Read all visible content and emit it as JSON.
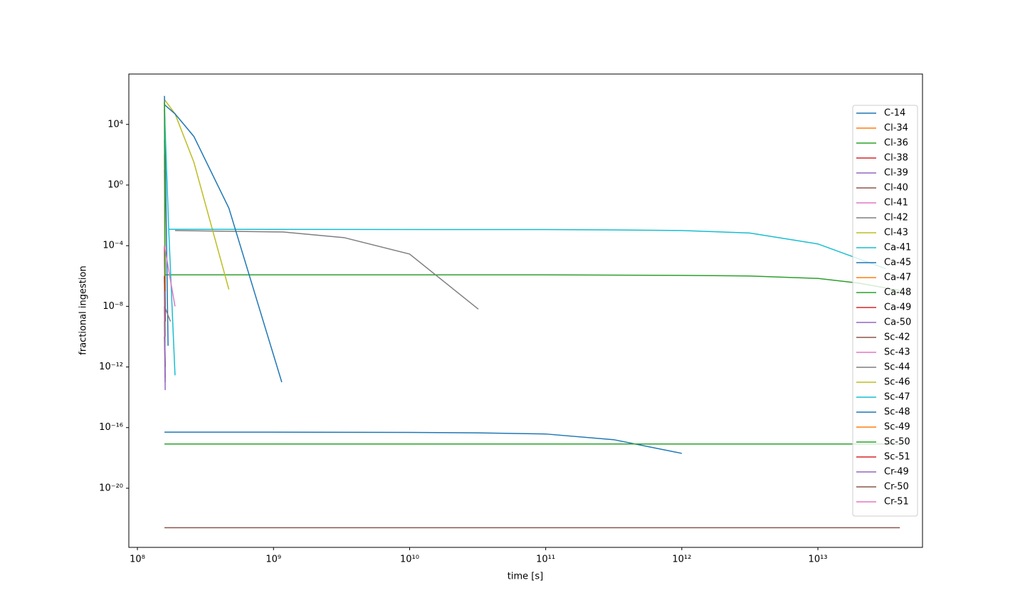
{
  "chart_data": {
    "type": "line",
    "xlabel": "time [s]",
    "ylabel": "fractional ingestion",
    "xscale": "log",
    "yscale": "log",
    "legend": "center right",
    "xlim": [
      86500000.0,
      58700000000000.0
    ],
    "ylim": [
      1.26e-24,
      21000000.0
    ],
    "xticks": [
      {
        "value": 100000000.0,
        "label": "10⁸"
      },
      {
        "value": 1000000000.0,
        "label": "10⁹"
      },
      {
        "value": 10000000000.0,
        "label": "10¹⁰"
      },
      {
        "value": 100000000000.0,
        "label": "10¹¹"
      },
      {
        "value": 1000000000000.0,
        "label": "10¹²"
      },
      {
        "value": 10000000000000.0,
        "label": "10¹³"
      }
    ],
    "yticks": [
      {
        "value": 10000.0,
        "label": "10⁴"
      },
      {
        "value": 1,
        "label": "10⁰"
      },
      {
        "value": 0.0001,
        "label": "10⁻⁴"
      },
      {
        "value": 1e-08,
        "label": "10⁻⁸"
      },
      {
        "value": 1e-12,
        "label": "10⁻¹²"
      },
      {
        "value": 1e-16,
        "label": "10⁻¹⁶"
      },
      {
        "value": 1e-20,
        "label": "10⁻²⁰"
      }
    ],
    "series": [
      {
        "name": "C-14",
        "color": "#1f77b4",
        "x": [
          158000000.0,
          1000000000.0,
          10000000000.0,
          31600000000.0,
          100000000000.0,
          316000000000.0,
          1000000000000.0
        ],
        "values": [
          5e-17,
          5e-17,
          4.8e-17,
          4.5e-17,
          3.8e-17,
          1.6e-17,
          2e-18
        ]
      },
      {
        "name": "Cl-34",
        "color": "#ff7f0e",
        "x": [
          158000000.0,
          160000000.0
        ],
        "values": [
          1000.0,
          1e-10
        ]
      },
      {
        "name": "Cl-36",
        "color": "#2ca02c",
        "x": [
          158000000.0,
          100000000000.0,
          1000000000000.0,
          3160000000000.0,
          10000000000000.0,
          20000000000000.0,
          40000000000000.0
        ],
        "values": [
          1.2e-06,
          1.2e-06,
          1.1e-06,
          1e-06,
          6.9e-07,
          3.4e-07,
          1.1e-07
        ]
      },
      {
        "name": "Cl-38",
        "color": "#d62728",
        "x": [
          158000000.0,
          160000000.0
        ],
        "values": [
          0.0001,
          1e-09
        ]
      },
      {
        "name": "Cl-39",
        "color": "#9467bd",
        "x": [
          158000000.0,
          160000000.0
        ],
        "values": [
          1e-06,
          1e-13
        ]
      },
      {
        "name": "Cl-40",
        "color": "#8c564b",
        "x": [
          158000000.0,
          160000000.0
        ],
        "values": [
          1e-08,
          1e-12
        ]
      },
      {
        "name": "Cl-41",
        "color": "#e377c2",
        "x": [
          158000000.0,
          160000000.0
        ],
        "values": [
          1e-06,
          1e-09
        ]
      },
      {
        "name": "Cl-42",
        "color": "#7f7f7f",
        "x": [
          189000000.0,
          1170000000.0,
          3300000000.0,
          10000000000.0,
          32000000000.0
        ],
        "values": [
          0.001,
          0.0008,
          0.00034,
          2.8e-05,
          6.5e-09
        ]
      },
      {
        "name": "Cl-43",
        "color": "#bcbd22",
        "x": [
          158000000.0,
          189000000.0,
          260000000.0,
          470000000.0
        ],
        "values": [
          440000.0,
          50000.0,
          32,
          1.3e-07
        ]
      },
      {
        "name": "Ca-41",
        "color": "#17becf",
        "x": [
          170000000.0,
          100000000000.0,
          316000000000.0,
          1000000000000.0,
          3160000000000.0,
          10000000000000.0,
          31600000000000.0
        ],
        "values": [
          0.0012,
          0.00115,
          0.0011,
          0.001,
          0.00068,
          0.00013,
          3e-06
        ]
      },
      {
        "name": "Ca-45",
        "color": "#1f77b4",
        "x": [
          158000000.0,
          168000000.0
        ],
        "values": [
          760000.0,
          2.5e-11
        ]
      },
      {
        "name": "Ca-47",
        "color": "#ff7f0e",
        "x": [
          158000000.0,
          160000000.0
        ],
        "values": [
          10,
          1e-07
        ]
      },
      {
        "name": "Ca-48",
        "color": "#2ca02c",
        "x": [
          158000000.0,
          10000000000.0,
          1000000000000.0,
          40000000000000.0
        ],
        "values": [
          8.3e-18,
          8.3e-18,
          8.3e-18,
          8.3e-18
        ]
      },
      {
        "name": "Ca-49",
        "color": "#d62728",
        "x": [
          158000000.0,
          160000000.0
        ],
        "values": [
          1e-05,
          1e-08
        ]
      },
      {
        "name": "Ca-50",
        "color": "#9467bd",
        "x": [
          158000000.0,
          160000000.0
        ],
        "values": [
          1e-09,
          3e-14
        ]
      },
      {
        "name": "Sc-42",
        "color": "#8c564b",
        "x": [
          158000000.0,
          160000000.0
        ],
        "values": [
          1e-10,
          1e-12
        ]
      },
      {
        "name": "Sc-43",
        "color": "#e377c2",
        "x": [
          158000000.0,
          160000000.0
        ],
        "values": [
          1e-05,
          1e-09
        ]
      },
      {
        "name": "Sc-44",
        "color": "#7f7f7f",
        "x": [
          158000000.0,
          175000000.0
        ],
        "values": [
          1e-08,
          1e-09
        ]
      },
      {
        "name": "Sc-46",
        "color": "#bcbd22",
        "x": [
          158000000.0,
          160000000.0
        ],
        "values": [
          300000.0,
          3e-10
        ]
      },
      {
        "name": "Sc-47",
        "color": "#17becf",
        "x": [
          158000000.0,
          170000000.0,
          189000000.0
        ],
        "values": [
          100000.0,
          0.001,
          2.8e-13
        ]
      },
      {
        "name": "Sc-48",
        "color": "#1f77b4",
        "x": [
          158000000.0,
          189000000.0,
          260000000.0,
          470000000.0,
          1150000000.0
        ],
        "values": [
          200000.0,
          50000.0,
          1600.0,
          0.03,
          1e-13
        ]
      },
      {
        "name": "Sc-49",
        "color": "#ff7f0e",
        "x": [
          158000000.0,
          160000000.0
        ],
        "values": [
          100,
          1e-06
        ]
      },
      {
        "name": "Sc-50",
        "color": "#2ca02c",
        "x": [
          158000000.0,
          160000000.0
        ],
        "values": [
          300000.0,
          1e-09
        ]
      },
      {
        "name": "Sc-51",
        "color": "#d62728",
        "x": [
          158000000.0,
          160000000.0
        ],
        "values": [
          1e-06,
          1e-09
        ]
      },
      {
        "name": "Cr-49",
        "color": "#9467bd",
        "x": [
          158000000.0,
          160000000.0
        ],
        "values": [
          1e-07,
          2e-13
        ]
      },
      {
        "name": "Cr-50",
        "color": "#8c564b",
        "x": [
          158000000.0,
          10000000000.0,
          1000000000000.0,
          40000000000000.0
        ],
        "values": [
          2.5e-23,
          2.5e-23,
          2.5e-23,
          2.5e-23
        ]
      },
      {
        "name": "Cr-51",
        "color": "#e377c2",
        "x": [
          158000000.0,
          189000000.0
        ],
        "values": [
          0.0001,
          1e-08
        ]
      }
    ]
  }
}
